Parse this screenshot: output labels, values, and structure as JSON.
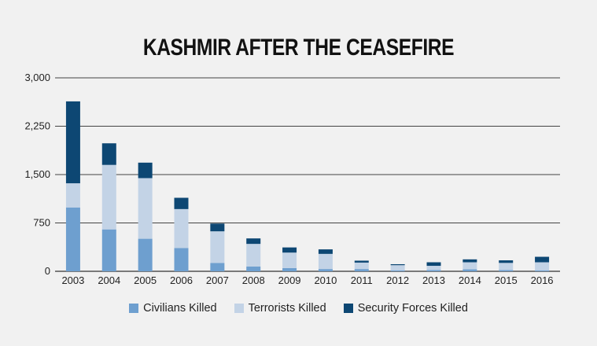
{
  "chart_data": {
    "type": "bar",
    "stacked": true,
    "title": "KASHMIR AFTER THE CEASEFIRE",
    "xlabel": "",
    "ylabel": "",
    "ylim": [
      0,
      3000
    ],
    "yticks": [
      0,
      750,
      1500,
      2250,
      3000
    ],
    "ytick_labels": [
      "0",
      "750",
      "1,500",
      "2,250",
      "3,000"
    ],
    "grid": true,
    "legend_position": "bottom",
    "categories": [
      "2003",
      "2004",
      "2005",
      "2006",
      "2007",
      "2008",
      "2009",
      "2010",
      "2011",
      "2012",
      "2013",
      "2014",
      "2015",
      "2016"
    ],
    "series": [
      {
        "name": "Civilians Killed",
        "color": "#6e9fcf",
        "values": [
          990,
          650,
          505,
          360,
          130,
          75,
          50,
          35,
          35,
          15,
          20,
          30,
          20,
          15
        ]
      },
      {
        "name": "Terrorists Killed",
        "color": "#c3d3e6",
        "values": [
          375,
          1000,
          940,
          605,
          490,
          350,
          240,
          235,
          100,
          80,
          65,
          110,
          110,
          125
        ]
      },
      {
        "name": "Security Forces Killed",
        "color": "#0d4773",
        "values": [
          1270,
          335,
          240,
          175,
          120,
          85,
          80,
          70,
          30,
          15,
          55,
          45,
          40,
          85
        ]
      }
    ]
  }
}
